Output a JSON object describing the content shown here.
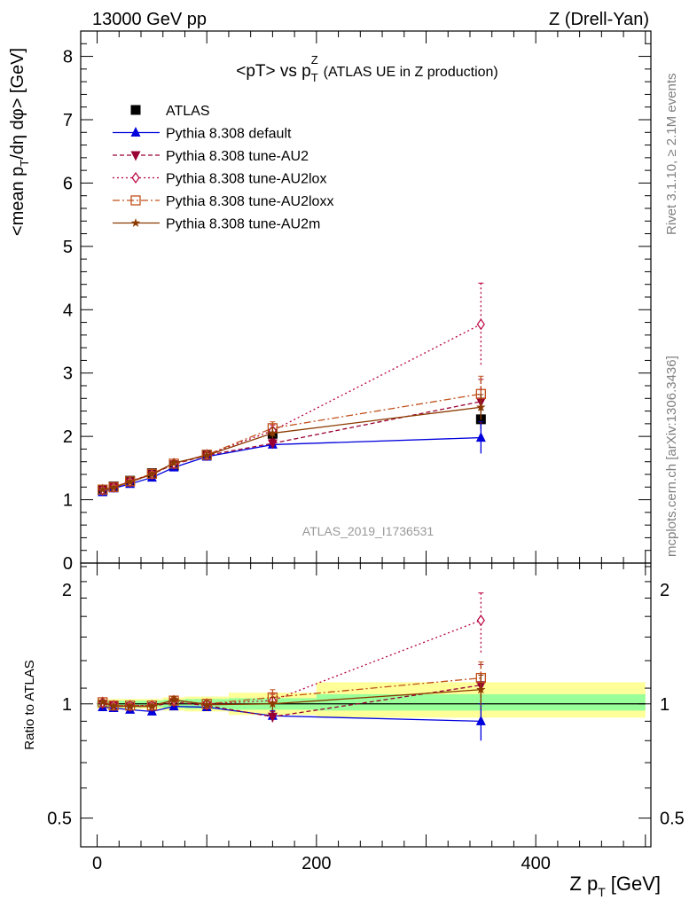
{
  "header": {
    "left": "13000 GeV pp",
    "right": "Z (Drell-Yan)"
  },
  "side_text": {
    "rivet": "Rivet 3.1.10, ≥ 2.1M events",
    "mcplots": "mcplots.cern.ch [arXiv:1306.3436]"
  },
  "colors": {
    "atlas": "#000000",
    "default": "#0000dd",
    "au2": "#990033",
    "au2lox": "#b8003f",
    "au2loxx": "#c0501a",
    "au2m": "#8b3a00",
    "band_inner": "#99ff99",
    "band_outer": "#ffff99"
  },
  "chart_data": [
    {
      "type": "line",
      "panel": "main",
      "title": "<pT> vs p_T^Z (ATLAS UE in Z production)",
      "title_main": "<pT> vs p",
      "title_sup": "Z",
      "title_sub": "T",
      "title_suffix": "(ATLAS UE in Z production)",
      "ylabel": "<mean p_T/dη dφ> [GeV]",
      "ylabel_pre": "<mean p",
      "ylabel_sub": "T",
      "ylabel_post": "/dη dφ> [GeV]",
      "watermark": "ATLAS_2019_I1736531",
      "xlim": [
        -15,
        505
      ],
      "ylim": [
        0,
        8.4
      ],
      "yticks": [
        0,
        1,
        2,
        3,
        4,
        5,
        6,
        7,
        8
      ],
      "legend_position": "top-left",
      "series": [
        {
          "name": "ATLAS",
          "key": "atlas",
          "marker": "square",
          "line": "none",
          "x": [
            5,
            15,
            30,
            50,
            70,
            100,
            160,
            350
          ],
          "y": [
            1.15,
            1.21,
            1.3,
            1.42,
            1.54,
            1.71,
            2.04,
            2.27
          ],
          "err": [
            0.02,
            0.02,
            0.03,
            0.03,
            0.04,
            0.05,
            0.07,
            0.15
          ]
        },
        {
          "name": "Pythia 8.308 default",
          "key": "default",
          "marker": "triangle-up",
          "line": "solid",
          "x": [
            5,
            15,
            30,
            50,
            70,
            100,
            160,
            350
          ],
          "y": [
            1.12,
            1.18,
            1.25,
            1.35,
            1.51,
            1.68,
            1.87,
            1.98
          ],
          "err": [
            0.01,
            0.02,
            0.02,
            0.03,
            0.03,
            0.04,
            0.06,
            0.25
          ]
        },
        {
          "name": "Pythia 8.308 tune-AU2",
          "key": "au2",
          "marker": "triangle-down",
          "line": "dashed",
          "x": [
            5,
            15,
            30,
            50,
            70,
            100,
            160,
            350
          ],
          "y": [
            1.15,
            1.2,
            1.28,
            1.4,
            1.56,
            1.7,
            1.89,
            2.55
          ],
          "err": [
            0.01,
            0.02,
            0.02,
            0.03,
            0.03,
            0.04,
            0.07,
            0.35
          ]
        },
        {
          "name": "Pythia 8.308 tune-AU2lox",
          "key": "au2lox",
          "marker": "diamond-open",
          "line": "dotted",
          "x": [
            5,
            15,
            30,
            50,
            70,
            100,
            160,
            350
          ],
          "y": [
            1.16,
            1.2,
            1.29,
            1.41,
            1.57,
            1.71,
            2.09,
            3.77
          ],
          "err": [
            0.01,
            0.02,
            0.02,
            0.03,
            0.03,
            0.04,
            0.09,
            0.65
          ]
        },
        {
          "name": "Pythia 8.308 tune-AU2loxx",
          "key": "au2loxx",
          "marker": "square-open",
          "line": "dashdot",
          "x": [
            5,
            15,
            30,
            50,
            70,
            100,
            160,
            350
          ],
          "y": [
            1.16,
            1.2,
            1.29,
            1.41,
            1.57,
            1.71,
            2.13,
            2.67
          ],
          "err": [
            0.01,
            0.02,
            0.02,
            0.03,
            0.03,
            0.04,
            0.1,
            0.28
          ]
        },
        {
          "name": "Pythia 8.308 tune-AU2m",
          "key": "au2m",
          "marker": "star",
          "line": "solid",
          "x": [
            5,
            15,
            30,
            50,
            70,
            100,
            160,
            350
          ],
          "y": [
            1.16,
            1.19,
            1.28,
            1.4,
            1.58,
            1.7,
            2.05,
            2.46
          ],
          "err": [
            0.01,
            0.02,
            0.02,
            0.03,
            0.03,
            0.04,
            0.08,
            0.2
          ]
        }
      ]
    },
    {
      "type": "line",
      "panel": "ratio",
      "ylabel": "Ratio to ATLAS",
      "xlabel": "Z p_T [GeV]",
      "xlabel_pre": "Z p",
      "xlabel_sub": "T",
      "xlabel_post": "[GeV]",
      "xlim": [
        -15,
        505
      ],
      "xticks": [
        0,
        200,
        400
      ],
      "ylim": [
        0.42,
        2.35
      ],
      "yscale": "log",
      "yticks": [
        0.5,
        1,
        2
      ],
      "band": {
        "edges": [
          0,
          10,
          20,
          40,
          60,
          80,
          120,
          200,
          500
        ],
        "inner_lo": [
          0.98,
          0.98,
          0.98,
          0.98,
          0.975,
          0.97,
          0.965,
          0.96
        ],
        "inner_hi": [
          1.02,
          1.02,
          1.02,
          1.02,
          1.025,
          1.03,
          1.035,
          1.06
        ],
        "outer_lo": [
          0.97,
          0.97,
          0.97,
          0.97,
          0.96,
          0.955,
          0.935,
          0.92
        ],
        "outer_hi": [
          1.03,
          1.03,
          1.03,
          1.03,
          1.04,
          1.045,
          1.07,
          1.14
        ]
      },
      "series": [
        {
          "key": "default",
          "marker": "triangle-up",
          "line": "solid",
          "x": [
            5,
            15,
            30,
            50,
            70,
            100,
            160,
            350
          ],
          "y": [
            0.98,
            0.975,
            0.965,
            0.955,
            0.985,
            0.98,
            0.93,
            0.9
          ],
          "err": [
            0.01,
            0.01,
            0.01,
            0.01,
            0.02,
            0.02,
            0.03,
            0.1
          ]
        },
        {
          "key": "au2",
          "marker": "triangle-down",
          "line": "dashed",
          "x": [
            5,
            15,
            30,
            50,
            70,
            100,
            160,
            350
          ],
          "y": [
            1.0,
            0.99,
            0.985,
            0.985,
            1.01,
            0.99,
            0.925,
            1.12
          ],
          "err": [
            0.01,
            0.01,
            0.01,
            0.01,
            0.02,
            0.02,
            0.03,
            0.15
          ]
        },
        {
          "key": "au2lox",
          "marker": "diamond-open",
          "line": "dotted",
          "x": [
            5,
            15,
            30,
            50,
            70,
            100,
            160,
            350
          ],
          "y": [
            1.01,
            0.99,
            0.99,
            0.99,
            1.02,
            1.0,
            1.02,
            1.66
          ],
          "err": [
            0.01,
            0.01,
            0.01,
            0.01,
            0.02,
            0.02,
            0.04,
            0.3
          ]
        },
        {
          "key": "au2loxx",
          "marker": "square-open",
          "line": "dashdot",
          "x": [
            5,
            15,
            30,
            50,
            70,
            100,
            160,
            350
          ],
          "y": [
            1.01,
            0.99,
            0.99,
            0.99,
            1.02,
            1.0,
            1.04,
            1.17
          ],
          "err": [
            0.01,
            0.01,
            0.01,
            0.01,
            0.02,
            0.02,
            0.05,
            0.12
          ]
        },
        {
          "key": "au2m",
          "marker": "star",
          "line": "solid",
          "x": [
            5,
            15,
            30,
            50,
            70,
            100,
            160,
            350
          ],
          "y": [
            1.01,
            0.985,
            0.985,
            0.985,
            1.025,
            0.995,
            1.0,
            1.09
          ],
          "err": [
            0.01,
            0.01,
            0.01,
            0.01,
            0.02,
            0.02,
            0.04,
            0.1
          ]
        }
      ]
    }
  ]
}
